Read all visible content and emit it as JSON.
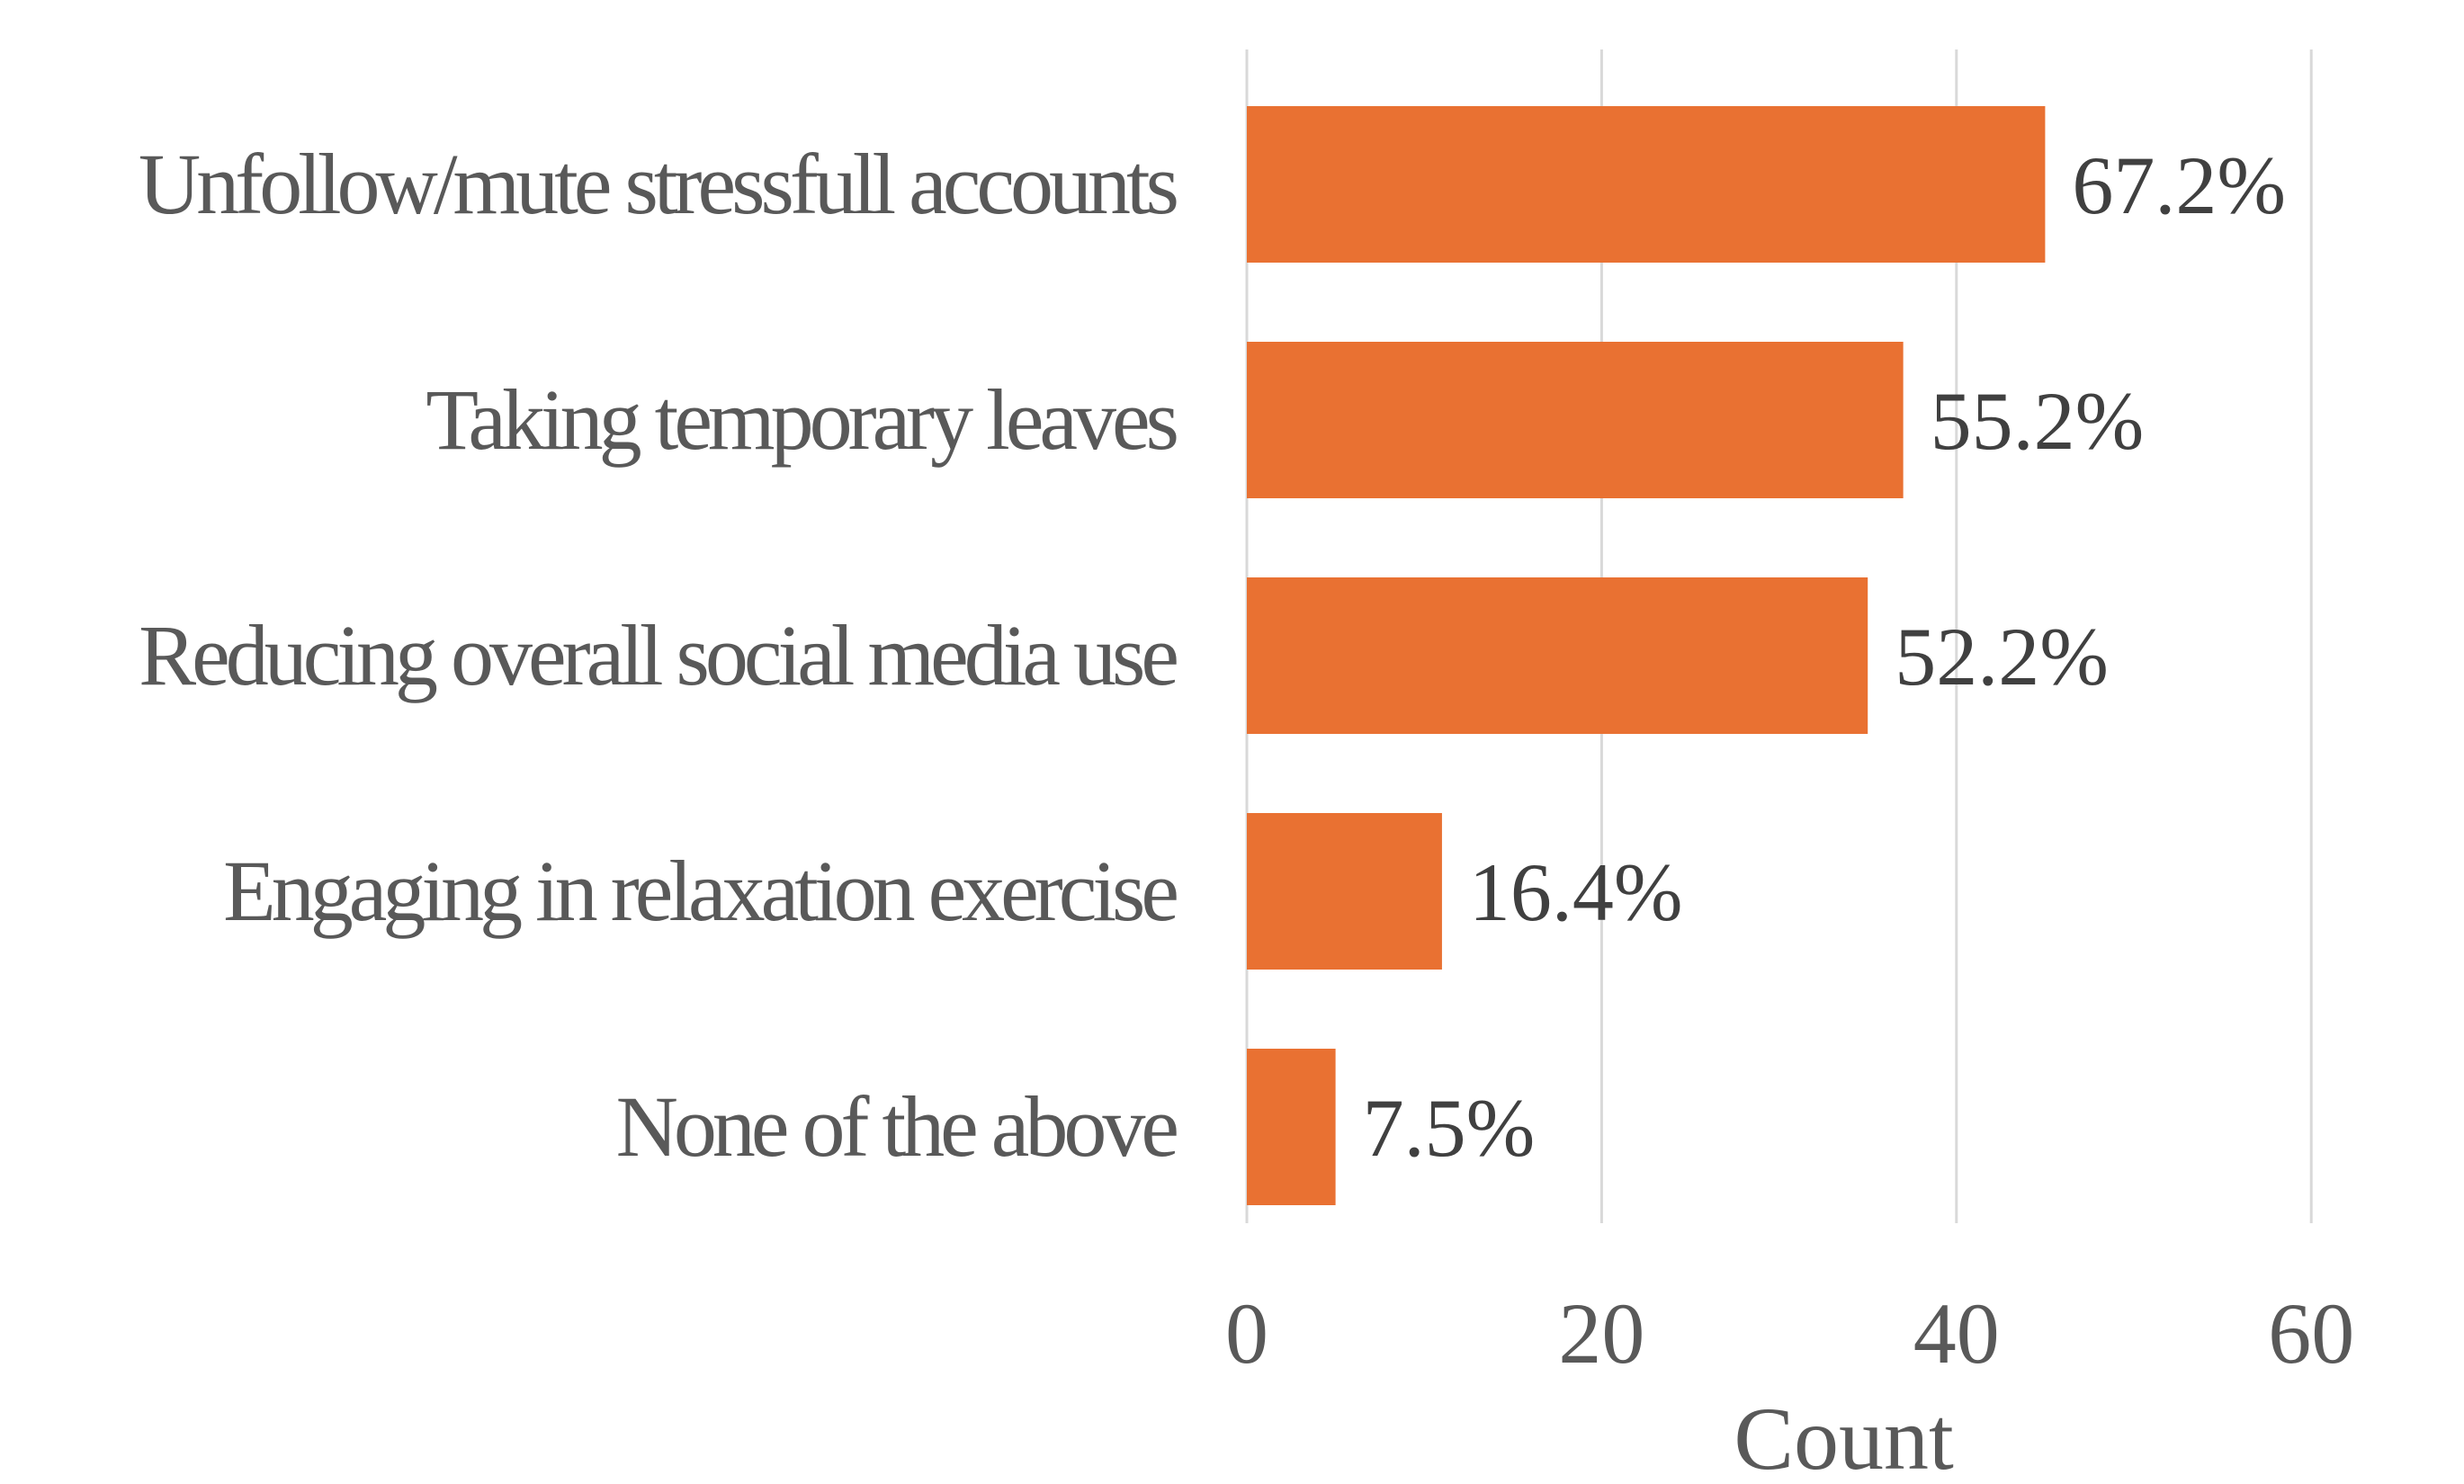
{
  "chart_data": {
    "type": "bar",
    "orientation": "horizontal",
    "categories": [
      "Unfollow/mute stressfull accounts",
      "Taking temporary leaves ",
      "Reducing overall social media use",
      "Engaging in relaxation exercise",
      "None of the above"
    ],
    "values": [
      45,
      37,
      35,
      11,
      5
    ],
    "data_labels": [
      "67.2%",
      "55.2%",
      "52.2%",
      "16.4%",
      "7.5%"
    ],
    "xlabel": "Count",
    "xlim": [
      0,
      60
    ],
    "xticks": [
      0,
      20,
      40,
      60
    ],
    "xtick_labels": [
      "0",
      "20",
      "40",
      "60"
    ],
    "grid": "vertical",
    "legend": "none",
    "bar_color": "#e97132"
  }
}
